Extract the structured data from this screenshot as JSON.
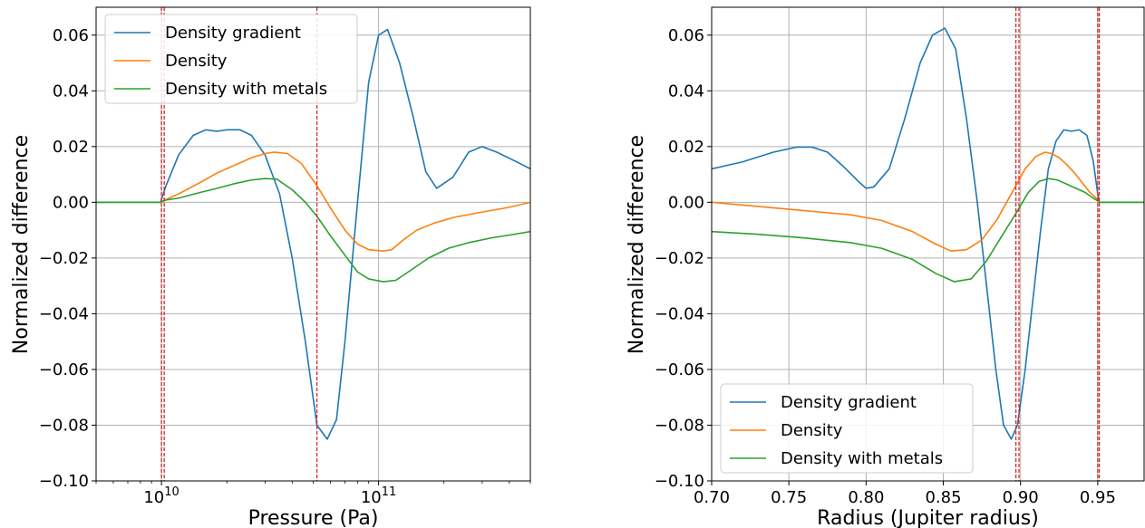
{
  "chart_data": [
    {
      "type": "line",
      "xscale": "log",
      "xlabel": "Pressure (Pa)",
      "ylabel": "Normalized difference",
      "xlim": [
        5000000000.0,
        500000000000.0
      ],
      "ylim": [
        -0.1,
        0.07
      ],
      "grid": true,
      "legend_position": "upper left",
      "x_ticks": [
        {
          "value": 10000000000.0,
          "base": "10",
          "exp": "10"
        },
        {
          "value": 100000000000.0,
          "base": "10",
          "exp": "11"
        }
      ],
      "y_ticks": [
        {
          "value": 0.06,
          "label": "0.06"
        },
        {
          "value": 0.04,
          "label": "0.04"
        },
        {
          "value": 0.02,
          "label": "0.02"
        },
        {
          "value": 0.0,
          "label": "0.00"
        },
        {
          "value": -0.02,
          "label": "−0.02"
        },
        {
          "value": -0.04,
          "label": "−0.04"
        },
        {
          "value": -0.06,
          "label": "−0.06"
        },
        {
          "value": -0.08,
          "label": "−0.08"
        },
        {
          "value": -0.1,
          "label": "−0.10"
        }
      ],
      "vlines": [
        10000000000.0,
        10300000000.0,
        52000000000.0
      ],
      "series": [
        {
          "name": "Density gradient",
          "color": "#1f77b4",
          "x": [
            5000000000.0,
            9900000000.0,
            10500000000.0,
            12000000000.0,
            14000000000.0,
            16000000000.0,
            18000000000.0,
            20000000000.0,
            23000000000.0,
            26000000000.0,
            30000000000.0,
            35000000000.0,
            40000000000.0,
            46000000000.0,
            52000000000.0,
            58000000000.0,
            64000000000.0,
            70000000000.0,
            80000000000.0,
            90000000000.0,
            100000000000.0,
            110000000000.0,
            125000000000.0,
            145000000000.0,
            165000000000.0,
            185000000000.0,
            220000000000.0,
            260000000000.0,
            300000000000.0,
            350000000000.0,
            420000000000.0,
            500000000000.0
          ],
          "y": [
            0.0,
            0.0,
            0.006,
            0.017,
            0.024,
            0.026,
            0.0255,
            0.026,
            0.026,
            0.024,
            0.017,
            0.003,
            -0.02,
            -0.05,
            -0.08,
            -0.085,
            -0.078,
            -0.05,
            0.0,
            0.043,
            0.06,
            0.062,
            0.05,
            0.03,
            0.011,
            0.005,
            0.009,
            0.018,
            0.02,
            0.018,
            0.015,
            0.012
          ]
        },
        {
          "name": "Density",
          "color": "#ff7f0e",
          "x": [
            5000000000.0,
            9900000000.0,
            10500000000.0,
            12000000000.0,
            15000000000.0,
            18000000000.0,
            22000000000.0,
            26000000000.0,
            30000000000.0,
            33000000000.0,
            38000000000.0,
            44000000000.0,
            52000000000.0,
            60000000000.0,
            70000000000.0,
            80000000000.0,
            90000000000.0,
            105000000000.0,
            115000000000.0,
            130000000000.0,
            150000000000.0,
            180000000000.0,
            220000000000.0,
            300000000000.0,
            400000000000.0,
            500000000000.0
          ],
          "y": [
            0.0,
            0.0,
            0.001,
            0.003,
            0.007,
            0.0105,
            0.0135,
            0.016,
            0.0175,
            0.018,
            0.0175,
            0.014,
            0.006,
            -0.002,
            -0.01,
            -0.015,
            -0.017,
            -0.0175,
            -0.017,
            -0.0135,
            -0.01,
            -0.0075,
            -0.0055,
            -0.0035,
            -0.0018,
            0.0
          ]
        },
        {
          "name": "Density with metals",
          "color": "#2ca02c",
          "x": [
            5000000000.0,
            9900000000.0,
            10500000000.0,
            12000000000.0,
            15000000000.0,
            18000000000.0,
            22000000000.0,
            26000000000.0,
            30000000000.0,
            34000000000.0,
            40000000000.0,
            46000000000.0,
            52000000000.0,
            60000000000.0,
            70000000000.0,
            80000000000.0,
            90000000000.0,
            105000000000.0,
            120000000000.0,
            140000000000.0,
            170000000000.0,
            210000000000.0,
            260000000000.0,
            330000000000.0,
            420000000000.0,
            500000000000.0
          ],
          "y": [
            0.0,
            0.0,
            0.0008,
            0.0015,
            0.0035,
            0.005,
            0.0068,
            0.008,
            0.0085,
            0.0083,
            0.0045,
            0.0,
            -0.005,
            -0.012,
            -0.019,
            -0.025,
            -0.0275,
            -0.0285,
            -0.028,
            -0.0245,
            -0.02,
            -0.0165,
            -0.0145,
            -0.0128,
            -0.0115,
            -0.0105
          ]
        }
      ]
    },
    {
      "type": "line",
      "xlabel": "Radius (Jupiter radius)",
      "ylabel": "Normalized difference",
      "xlim": [
        0.7,
        0.98
      ],
      "ylim": [
        -0.1,
        0.07
      ],
      "grid": true,
      "legend_position": "lower left",
      "x_ticks": [
        {
          "value": 0.7,
          "label": "0.70"
        },
        {
          "value": 0.75,
          "label": "0.75"
        },
        {
          "value": 0.8,
          "label": "0.80"
        },
        {
          "value": 0.85,
          "label": "0.85"
        },
        {
          "value": 0.9,
          "label": "0.90"
        },
        {
          "value": 0.95,
          "label": "0.95"
        }
      ],
      "y_ticks": [
        {
          "value": 0.06,
          "label": "0.06"
        },
        {
          "value": 0.04,
          "label": "0.04"
        },
        {
          "value": 0.02,
          "label": "0.02"
        },
        {
          "value": 0.0,
          "label": "0.00"
        },
        {
          "value": -0.02,
          "label": "−0.02"
        },
        {
          "value": -0.04,
          "label": "−0.04"
        },
        {
          "value": -0.06,
          "label": "−0.06"
        },
        {
          "value": -0.08,
          "label": "−0.08"
        },
        {
          "value": -0.1,
          "label": "−0.10"
        }
      ],
      "vlines": [
        0.897,
        0.899,
        0.95,
        0.951
      ],
      "series": [
        {
          "name": "Density gradient",
          "color": "#1f77b4",
          "x": [
            0.7,
            0.72,
            0.74,
            0.755,
            0.765,
            0.775,
            0.785,
            0.795,
            0.8,
            0.805,
            0.815,
            0.825,
            0.835,
            0.843,
            0.851,
            0.858,
            0.865,
            0.872,
            0.878,
            0.884,
            0.889,
            0.894,
            0.898,
            0.903,
            0.908,
            0.913,
            0.918,
            0.923,
            0.928,
            0.933,
            0.938,
            0.943,
            0.947,
            0.95,
            0.951,
            0.98
          ],
          "y": [
            0.012,
            0.0145,
            0.018,
            0.0198,
            0.0198,
            0.018,
            0.013,
            0.0075,
            0.005,
            0.0055,
            0.012,
            0.03,
            0.05,
            0.06,
            0.0625,
            0.055,
            0.03,
            0.0,
            -0.03,
            -0.06,
            -0.08,
            -0.085,
            -0.08,
            -0.06,
            -0.035,
            -0.01,
            0.012,
            0.022,
            0.026,
            0.0255,
            0.026,
            0.024,
            0.015,
            0.003,
            0.0,
            0.0
          ]
        },
        {
          "name": "Density",
          "color": "#ff7f0e",
          "x": [
            0.7,
            0.73,
            0.76,
            0.79,
            0.81,
            0.83,
            0.845,
            0.855,
            0.865,
            0.875,
            0.885,
            0.895,
            0.903,
            0.91,
            0.916,
            0.92,
            0.925,
            0.93,
            0.935,
            0.94,
            0.945,
            0.95,
            0.951,
            0.98
          ],
          "y": [
            0.0,
            -0.0015,
            -0.003,
            -0.0045,
            -0.0065,
            -0.0105,
            -0.015,
            -0.0175,
            -0.017,
            -0.0135,
            -0.006,
            0.004,
            0.012,
            0.0165,
            0.018,
            0.0175,
            0.016,
            0.0135,
            0.0105,
            0.007,
            0.0035,
            0.001,
            0.0,
            0.0
          ]
        },
        {
          "name": "Density with metals",
          "color": "#2ca02c",
          "x": [
            0.7,
            0.73,
            0.76,
            0.79,
            0.81,
            0.83,
            0.845,
            0.857,
            0.868,
            0.878,
            0.888,
            0.897,
            0.905,
            0.912,
            0.918,
            0.924,
            0.93,
            0.936,
            0.942,
            0.947,
            0.95,
            0.951,
            0.98
          ],
          "y": [
            -0.0105,
            -0.0115,
            -0.0128,
            -0.0145,
            -0.0165,
            -0.0205,
            -0.0255,
            -0.0285,
            -0.0275,
            -0.021,
            -0.012,
            -0.004,
            0.0035,
            0.0075,
            0.0085,
            0.008,
            0.0065,
            0.005,
            0.0035,
            0.0015,
            0.0005,
            0.0,
            0.0
          ]
        }
      ]
    }
  ]
}
